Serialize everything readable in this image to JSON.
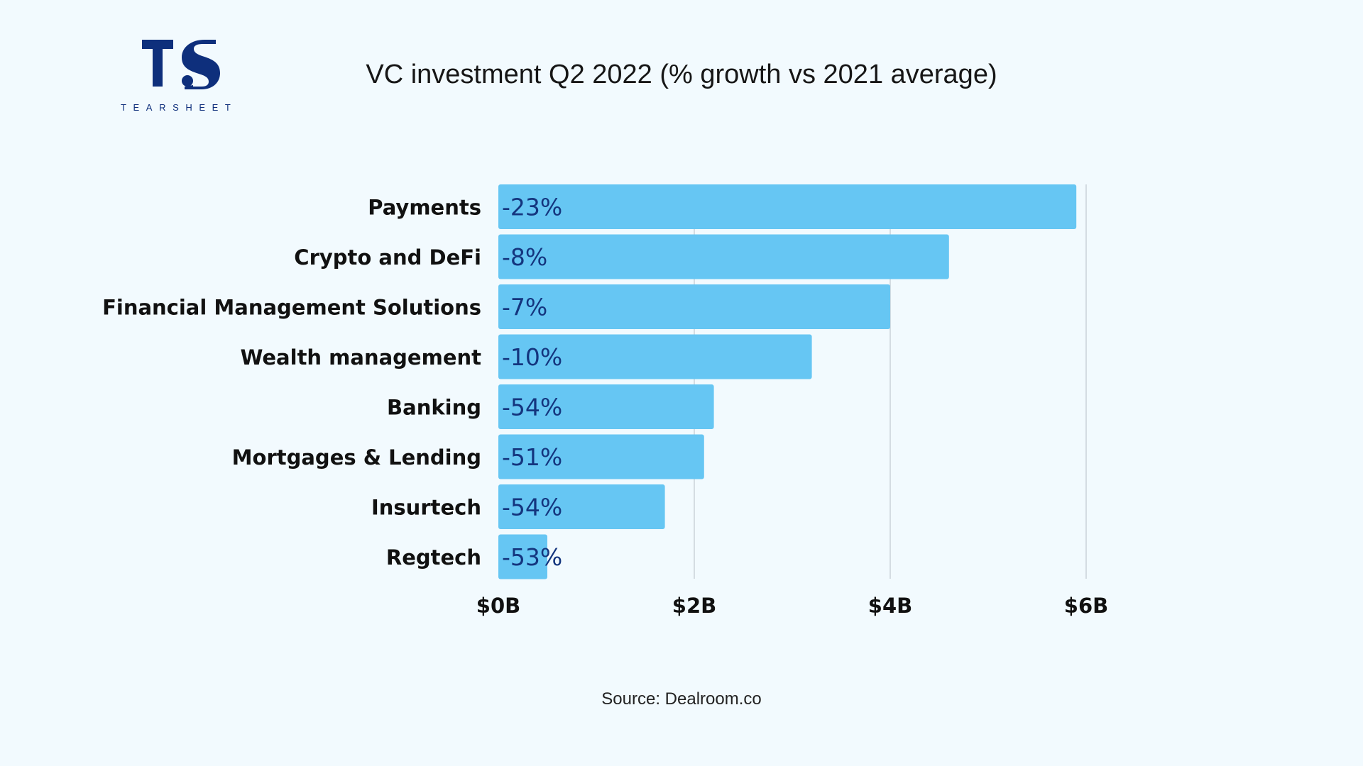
{
  "brand": {
    "logo_text": "TS",
    "wordmark": "TEARSHEET",
    "color": "#0e2f7c"
  },
  "chart_data": {
    "type": "bar",
    "orientation": "horizontal",
    "title": "VC investment Q2 2022 (% growth vs 2021 average)",
    "categories": [
      "Payments",
      "Crypto and DeFi",
      "Financial Management Solutions",
      "Wealth management",
      "Banking",
      "Mortgages & Lending",
      "Insurtech",
      "Regtech"
    ],
    "values": [
      5.9,
      4.6,
      4.0,
      3.2,
      2.2,
      2.1,
      1.7,
      0.5
    ],
    "data_labels": [
      "-23%",
      "-8%",
      "-7%",
      "-10%",
      "-54%",
      "-51%",
      "-54%",
      "-53%"
    ],
    "value_unit": "$B",
    "xlim": [
      0,
      6
    ],
    "x_ticks": [
      0,
      2,
      4,
      6
    ],
    "x_tick_labels": [
      "$0B",
      "$2B",
      "$4B",
      "$6B"
    ],
    "grid": true,
    "legend": "none",
    "bar_color": "#66c6f3",
    "data_label_color": "#14357e",
    "gridline_color": "#c9d2d9"
  },
  "source": "Source: Dealroom.co"
}
